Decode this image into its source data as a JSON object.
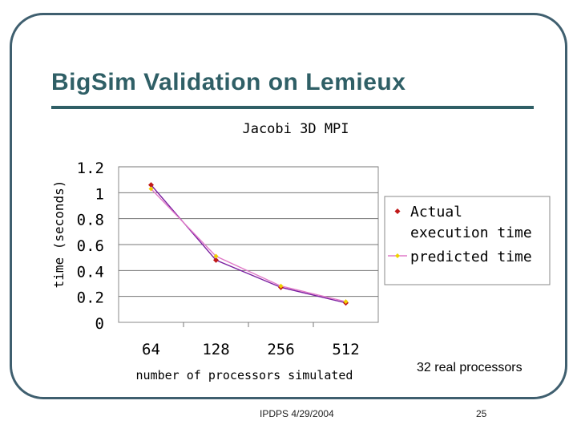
{
  "slide": {
    "title": "BigSim Validation on Lemieux",
    "note": "32 real processors",
    "footer": "IPDPS 4/29/2004",
    "page_number": "25"
  },
  "chart_data": {
    "type": "line",
    "title": "Jacobi 3D MPI",
    "xlabel": "number of processors simulated",
    "ylabel": "time (seconds)",
    "categories": [
      "64",
      "128",
      "256",
      "512"
    ],
    "y_ticks": [
      "1.2",
      "1",
      "0.8",
      "0.6",
      "0.4",
      "0.2",
      "0"
    ],
    "ylim": [
      0,
      1.2
    ],
    "legend_position": "right",
    "grid": true,
    "series": [
      {
        "name_lines": [
          "Actual",
          "execution time"
        ],
        "values": [
          1.06,
          0.48,
          0.27,
          0.15
        ],
        "color": "#7a1fa0",
        "marker_color": "#c01818"
      },
      {
        "name_lines": [
          "predicted time"
        ],
        "values": [
          1.03,
          0.51,
          0.28,
          0.16
        ],
        "color": "#e07ac8",
        "marker_color": "#f0d000"
      }
    ]
  }
}
